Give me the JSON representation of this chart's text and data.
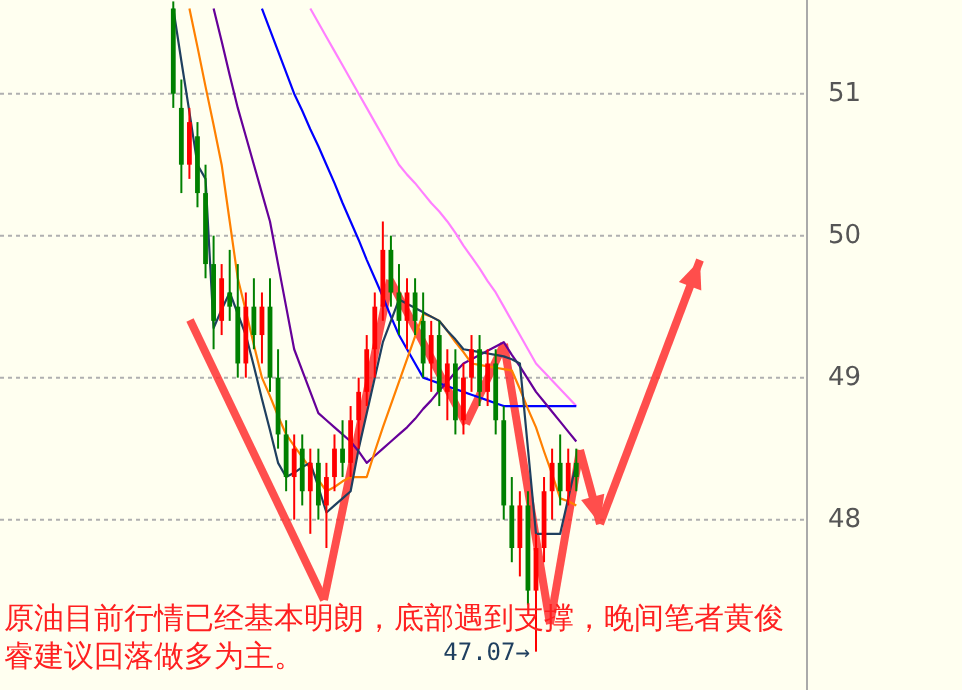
{
  "chart_data": {
    "type": "candlestick",
    "categories": [
      null,
      null,
      null,
      null,
      null,
      null,
      null,
      null,
      null,
      null,
      null,
      null,
      null,
      null,
      null,
      null,
      null,
      null,
      null,
      null,
      null,
      null,
      null,
      null,
      null,
      null,
      null,
      null,
      null,
      null,
      null,
      null,
      null,
      null,
      null,
      null,
      null,
      null,
      null,
      null,
      null,
      null,
      null,
      null,
      null,
      null,
      null,
      null,
      null,
      null,
      null,
      null,
      null,
      null,
      null,
      null,
      null,
      null,
      null,
      null,
      null,
      null,
      null,
      null,
      null,
      null,
      null,
      null,
      null,
      null,
      null,
      null,
      null,
      null,
      null,
      null,
      null,
      null,
      null,
      null,
      null,
      null,
      null,
      null,
      null,
      null,
      null,
      null,
      null,
      null,
      null,
      null,
      null,
      null,
      null,
      null,
      null,
      null,
      null,
      null
    ],
    "ohlc": [
      null,
      null,
      null,
      null,
      null,
      null,
      null,
      null,
      null,
      null,
      null,
      null,
      null,
      null,
      null,
      null,
      null,
      null,
      null,
      null,
      null,
      [
        51.6,
        51.65,
        50.9,
        51.0
      ],
      [
        50.9,
        51.1,
        50.3,
        50.5
      ],
      [
        50.5,
        50.9,
        50.4,
        50.8
      ],
      [
        50.7,
        50.8,
        50.2,
        50.3
      ],
      [
        50.3,
        50.5,
        49.7,
        49.8
      ],
      [
        49.8,
        50.0,
        49.2,
        49.4
      ],
      [
        49.4,
        49.8,
        49.3,
        49.7
      ],
      [
        49.6,
        49.9,
        49.4,
        49.5
      ],
      [
        49.5,
        49.8,
        49.0,
        49.1
      ],
      [
        49.1,
        49.6,
        49.0,
        49.5
      ],
      [
        49.5,
        49.7,
        49.2,
        49.3
      ],
      [
        49.3,
        49.6,
        49.1,
        49.5
      ],
      [
        49.5,
        49.7,
        48.9,
        49.0
      ],
      [
        49.0,
        49.2,
        48.5,
        48.6
      ],
      [
        48.6,
        48.7,
        48.2,
        48.3
      ],
      [
        48.3,
        48.6,
        48.0,
        48.5
      ],
      [
        48.5,
        48.6,
        48.1,
        48.2
      ],
      [
        48.2,
        48.5,
        47.9,
        48.4
      ],
      [
        48.4,
        48.5,
        48.0,
        48.1
      ],
      [
        48.1,
        48.4,
        47.8,
        48.3
      ],
      [
        48.3,
        48.6,
        48.2,
        48.5
      ],
      [
        48.5,
        48.7,
        48.3,
        48.4
      ],
      [
        48.4,
        48.8,
        48.3,
        48.7
      ],
      [
        48.7,
        49.0,
        48.5,
        48.9
      ],
      [
        48.9,
        49.3,
        48.8,
        49.2
      ],
      [
        49.2,
        49.6,
        49.0,
        49.5
      ],
      [
        49.5,
        50.1,
        49.4,
        49.9
      ],
      [
        49.9,
        50.0,
        49.5,
        49.6
      ],
      [
        49.6,
        49.8,
        49.3,
        49.4
      ],
      [
        49.4,
        49.7,
        49.2,
        49.6
      ],
      [
        49.6,
        49.7,
        49.3,
        49.4
      ],
      [
        49.4,
        49.6,
        49.0,
        49.1
      ],
      [
        49.1,
        49.4,
        48.9,
        49.3
      ],
      [
        49.3,
        49.4,
        48.8,
        48.9
      ],
      [
        48.9,
        49.2,
        48.7,
        49.1
      ],
      [
        49.1,
        49.2,
        48.6,
        48.7
      ],
      [
        48.7,
        49.1,
        48.6,
        49.0
      ],
      [
        49.0,
        49.3,
        48.9,
        49.2
      ],
      [
        49.2,
        49.3,
        48.8,
        48.9
      ],
      [
        48.9,
        49.2,
        48.8,
        49.1
      ],
      [
        49.1,
        49.2,
        48.6,
        48.7
      ],
      [
        48.7,
        48.8,
        48.0,
        48.1
      ],
      [
        48.1,
        48.3,
        47.7,
        47.8
      ],
      [
        47.8,
        48.2,
        47.6,
        48.1
      ],
      [
        48.1,
        48.2,
        47.4,
        47.5
      ],
      [
        47.5,
        47.9,
        47.07,
        47.8
      ],
      [
        47.8,
        48.3,
        47.7,
        48.2
      ],
      [
        48.2,
        48.5,
        48.0,
        48.4
      ],
      [
        48.4,
        48.6,
        48.1,
        48.2
      ],
      [
        48.2,
        48.5,
        48.1,
        48.4
      ],
      [
        48.4,
        48.5,
        48.2,
        48.3
      ],
      null,
      null,
      null,
      null,
      null,
      null,
      null,
      null,
      null,
      null,
      null,
      null,
      null,
      null,
      null,
      null,
      null,
      null,
      null,
      null,
      null,
      null,
      null,
      null,
      null,
      null,
      null,
      null
    ],
    "series": [
      {
        "type": "line",
        "color": "#ff80ff",
        "values": [
          null,
          null,
          null,
          null,
          null,
          null,
          null,
          null,
          null,
          null,
          null,
          null,
          null,
          null,
          null,
          null,
          null,
          null,
          null,
          null,
          null,
          null,
          null,
          null,
          null,
          null,
          null,
          null,
          null,
          null,
          null,
          null,
          null,
          null,
          null,
          null,
          null,
          null,
          51.6,
          51.5,
          51.4,
          51.3,
          51.2,
          51.1,
          51.0,
          50.9,
          50.8,
          50.7,
          50.6,
          50.5,
          50.43,
          50.37,
          50.3,
          50.23,
          50.17,
          50.1,
          50.02,
          49.93,
          49.85,
          49.77,
          49.68,
          49.6,
          49.5,
          49.4,
          49.3,
          49.2,
          49.1,
          49.04,
          48.98,
          48.92,
          48.86,
          48.8,
          null,
          null,
          null,
          null,
          null,
          null,
          null,
          null,
          null,
          null,
          null,
          null,
          null,
          null,
          null,
          null,
          null,
          null,
          null,
          null,
          null,
          null,
          null,
          null,
          null,
          null,
          null,
          null
        ]
      },
      {
        "type": "line",
        "color": "#0000ff",
        "values": [
          null,
          null,
          null,
          null,
          null,
          null,
          null,
          null,
          null,
          null,
          null,
          null,
          null,
          null,
          null,
          null,
          null,
          null,
          null,
          null,
          null,
          null,
          null,
          null,
          null,
          null,
          null,
          null,
          null,
          null,
          null,
          null,
          51.6,
          51.45,
          51.3,
          51.15,
          51.0,
          50.88,
          50.75,
          50.63,
          50.5,
          50.37,
          50.23,
          50.1,
          49.97,
          49.83,
          49.7,
          49.57,
          49.43,
          49.3,
          49.2,
          49.1,
          49.0,
          48.98,
          48.96,
          48.94,
          48.92,
          48.9,
          48.88,
          48.86,
          48.84,
          48.82,
          48.8,
          48.8,
          48.8,
          48.8,
          48.8,
          48.8,
          48.8,
          48.8,
          48.8,
          48.8,
          null,
          null,
          null,
          null,
          null,
          null,
          null,
          null,
          null,
          null,
          null,
          null,
          null,
          null,
          null,
          null,
          null,
          null,
          null,
          null,
          null,
          null,
          null,
          null,
          null,
          null,
          null,
          null
        ]
      },
      {
        "type": "line",
        "color": "#660099",
        "values": [
          null,
          null,
          null,
          null,
          null,
          null,
          null,
          null,
          null,
          null,
          null,
          null,
          null,
          null,
          null,
          null,
          null,
          null,
          null,
          null,
          null,
          null,
          null,
          null,
          null,
          null,
          51.6,
          51.37,
          51.13,
          50.9,
          50.7,
          50.5,
          50.3,
          50.1,
          49.8,
          49.5,
          49.2,
          49.05,
          48.9,
          48.75,
          48.7,
          48.65,
          48.6,
          48.55,
          48.48,
          48.4,
          48.45,
          48.5,
          48.55,
          48.6,
          48.65,
          48.71,
          48.78,
          48.84,
          48.91,
          48.97,
          49.04,
          49.1,
          49.13,
          49.16,
          49.19,
          49.22,
          49.25,
          49.16,
          49.08,
          48.99,
          48.9,
          48.83,
          48.76,
          48.69,
          48.62,
          48.55,
          null,
          null,
          null,
          null,
          null,
          null,
          null,
          null,
          null,
          null,
          null,
          null,
          null,
          null,
          null,
          null,
          null,
          null,
          null,
          null,
          null,
          null,
          null,
          null,
          null,
          null,
          null,
          null
        ]
      },
      {
        "type": "line",
        "color": "#ff8000",
        "values": [
          null,
          null,
          null,
          null,
          null,
          null,
          null,
          null,
          null,
          null,
          null,
          null,
          null,
          null,
          null,
          null,
          null,
          null,
          null,
          null,
          null,
          null,
          null,
          51.6,
          51.33,
          51.05,
          50.78,
          50.5,
          50.1,
          49.7,
          49.47,
          49.23,
          49.0,
          48.87,
          48.73,
          48.6,
          48.52,
          48.44,
          48.36,
          48.28,
          48.2,
          48.23,
          48.27,
          48.3,
          48.3,
          48.3,
          48.48,
          48.65,
          48.81,
          48.97,
          49.13,
          49.29,
          49.45,
          49.43,
          49.4,
          49.33,
          49.25,
          49.18,
          49.1,
          49.09,
          49.08,
          49.07,
          49.06,
          49.05,
          48.92,
          48.78,
          48.65,
          48.48,
          48.32,
          48.15,
          48.13,
          48.1,
          null,
          null,
          null,
          null,
          null,
          null,
          null,
          null,
          null,
          null,
          null,
          null,
          null,
          null,
          null,
          null,
          null,
          null,
          null,
          null,
          null,
          null,
          null,
          null,
          null,
          null,
          null,
          null
        ]
      },
      {
        "type": "line",
        "color": "#1f3f5f",
        "values": [
          null,
          null,
          null,
          null,
          null,
          null,
          null,
          null,
          null,
          null,
          null,
          null,
          null,
          null,
          null,
          null,
          null,
          null,
          null,
          null,
          null,
          51.6,
          51.23,
          50.87,
          50.5,
          50.4,
          49.35,
          49.48,
          49.6,
          49.45,
          49.3,
          49.08,
          48.85,
          48.63,
          48.4,
          48.3,
          48.33,
          48.37,
          48.4,
          48.23,
          48.05,
          48.1,
          48.15,
          48.2,
          48.5,
          48.75,
          49.0,
          49.25,
          49.4,
          49.55,
          49.52,
          49.49,
          49.46,
          49.43,
          49.4,
          49.33,
          49.27,
          49.2,
          49.19,
          49.18,
          49.17,
          49.16,
          49.15,
          49.13,
          49.1,
          48.5,
          47.9,
          47.9,
          47.9,
          47.9,
          48.15,
          48.4,
          null,
          null,
          null,
          null,
          null,
          null,
          null,
          null,
          null,
          null,
          null,
          null,
          null,
          null,
          null,
          null,
          null,
          null,
          null,
          null,
          null,
          null,
          null,
          null,
          null,
          null,
          null,
          null
        ]
      }
    ],
    "ylim": [
      46.8,
      51.66
    ],
    "yticks": [
      48,
      49,
      50,
      51
    ],
    "tick_labels": "y",
    "grid": "y",
    "annotations": [
      "原油目前行情已经基本明朗，底部遇到支撑，晚间笔者黄俊睿建议回落做多为主。",
      "47.07→"
    ]
  }
}
